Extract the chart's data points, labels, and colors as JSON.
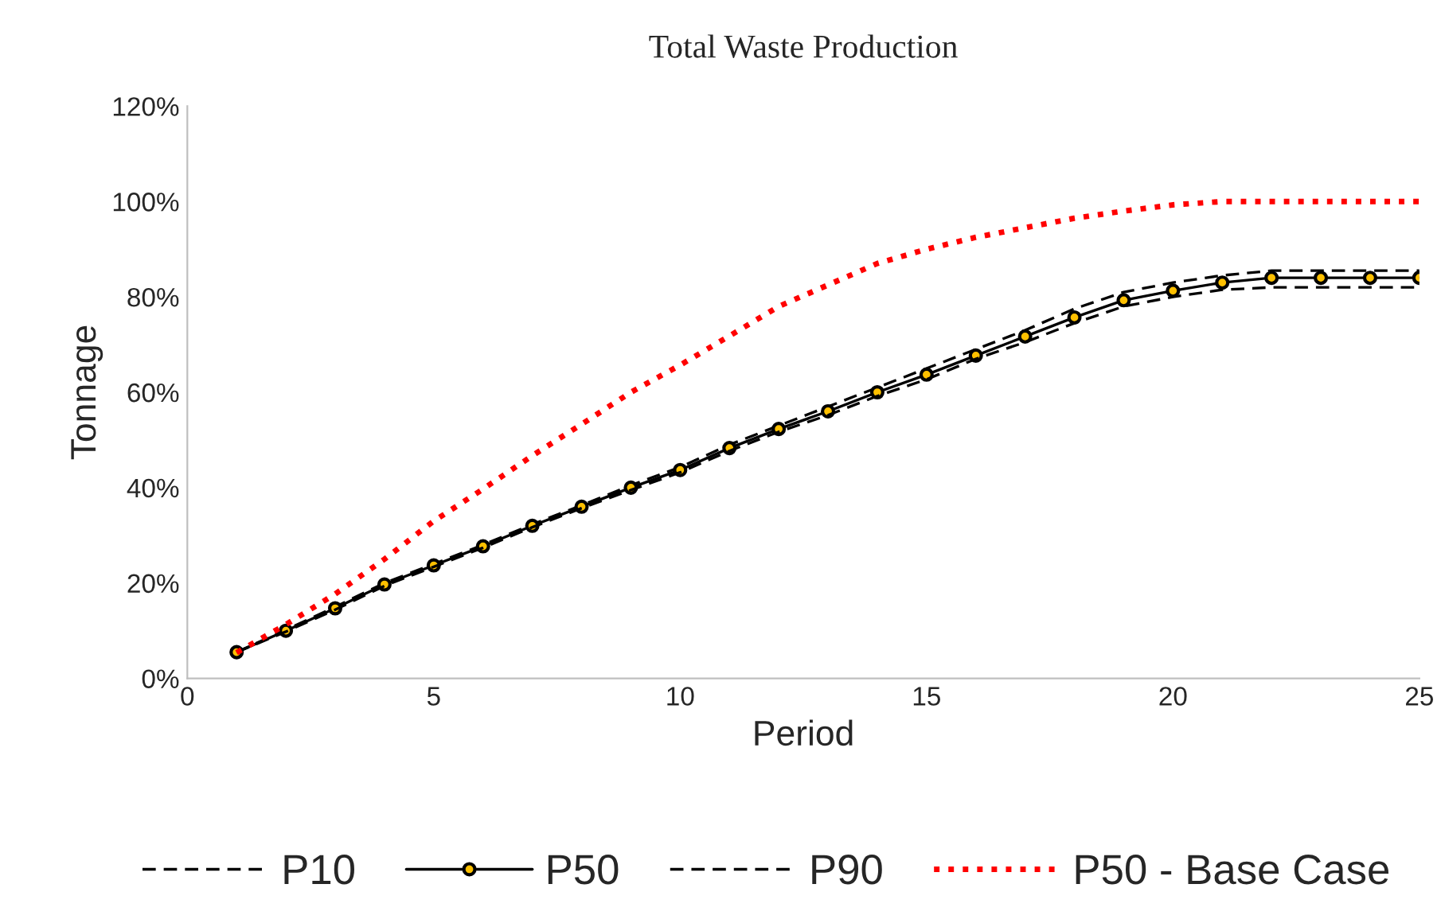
{
  "chart_data": {
    "type": "line",
    "title": "Total Waste Production",
    "xlabel": "Period",
    "ylabel": "Tonnage",
    "x": [
      1,
      2,
      3,
      4,
      5,
      6,
      7,
      8,
      9,
      10,
      11,
      12,
      13,
      14,
      15,
      16,
      17,
      18,
      19,
      20,
      21,
      22,
      23,
      24,
      25
    ],
    "xlim": [
      0,
      25
    ],
    "xticks": [
      0,
      5,
      10,
      15,
      20,
      25
    ],
    "ylim": [
      0,
      120
    ],
    "yticks": [
      {
        "value": 0,
        "label": "0%"
      },
      {
        "value": 20,
        "label": "20%"
      },
      {
        "value": 40,
        "label": "40%"
      },
      {
        "value": 60,
        "label": "60%"
      },
      {
        "value": 80,
        "label": "80%"
      },
      {
        "value": 100,
        "label": "100%"
      },
      {
        "value": 120,
        "label": "120%"
      }
    ],
    "grid": false,
    "legend": "bottom",
    "series": [
      {
        "name": "P10",
        "color": "#000000",
        "line_style": "dashed",
        "marker": "none",
        "values": [
          5.5,
          10.2,
          15,
          20,
          24,
          28,
          32.3,
          36.3,
          40.5,
          44.3,
          49,
          53,
          57,
          61,
          65,
          69,
          73,
          77.5,
          81,
          83,
          84.5,
          85.5,
          85.5,
          85.5,
          85.5
        ]
      },
      {
        "name": "P50",
        "color": "#000000",
        "line_style": "solid",
        "marker": "circle",
        "values": [
          5.5,
          10,
          14.7,
          19.7,
          23.7,
          27.7,
          32,
          36,
          40,
          43.7,
          48.3,
          52.3,
          56,
          60,
          63.7,
          67.7,
          71.7,
          75.7,
          79.3,
          81.3,
          83,
          84,
          84,
          84,
          84
        ]
      },
      {
        "name": "P90",
        "color": "#000000",
        "line_style": "dashed",
        "marker": "none",
        "values": [
          5.5,
          9.8,
          14.4,
          19.4,
          23.4,
          27.4,
          31.7,
          35.7,
          39.5,
          43.2,
          47.7,
          51.7,
          55.2,
          59.2,
          62.7,
          67,
          70.5,
          74.5,
          78,
          80,
          81.5,
          82,
          82,
          82,
          82
        ]
      },
      {
        "name": "P50 - Base Case",
        "color": "#ff0000",
        "line_style": "dotted",
        "marker": "none",
        "values": [
          5.4,
          11.3,
          17.7,
          25,
          33,
          39.7,
          46.7,
          53.3,
          60,
          65.7,
          71.8,
          78,
          82.5,
          87,
          90,
          92.5,
          94.5,
          96.5,
          98,
          99.3,
          100,
          100,
          100,
          100,
          100
        ]
      }
    ]
  }
}
